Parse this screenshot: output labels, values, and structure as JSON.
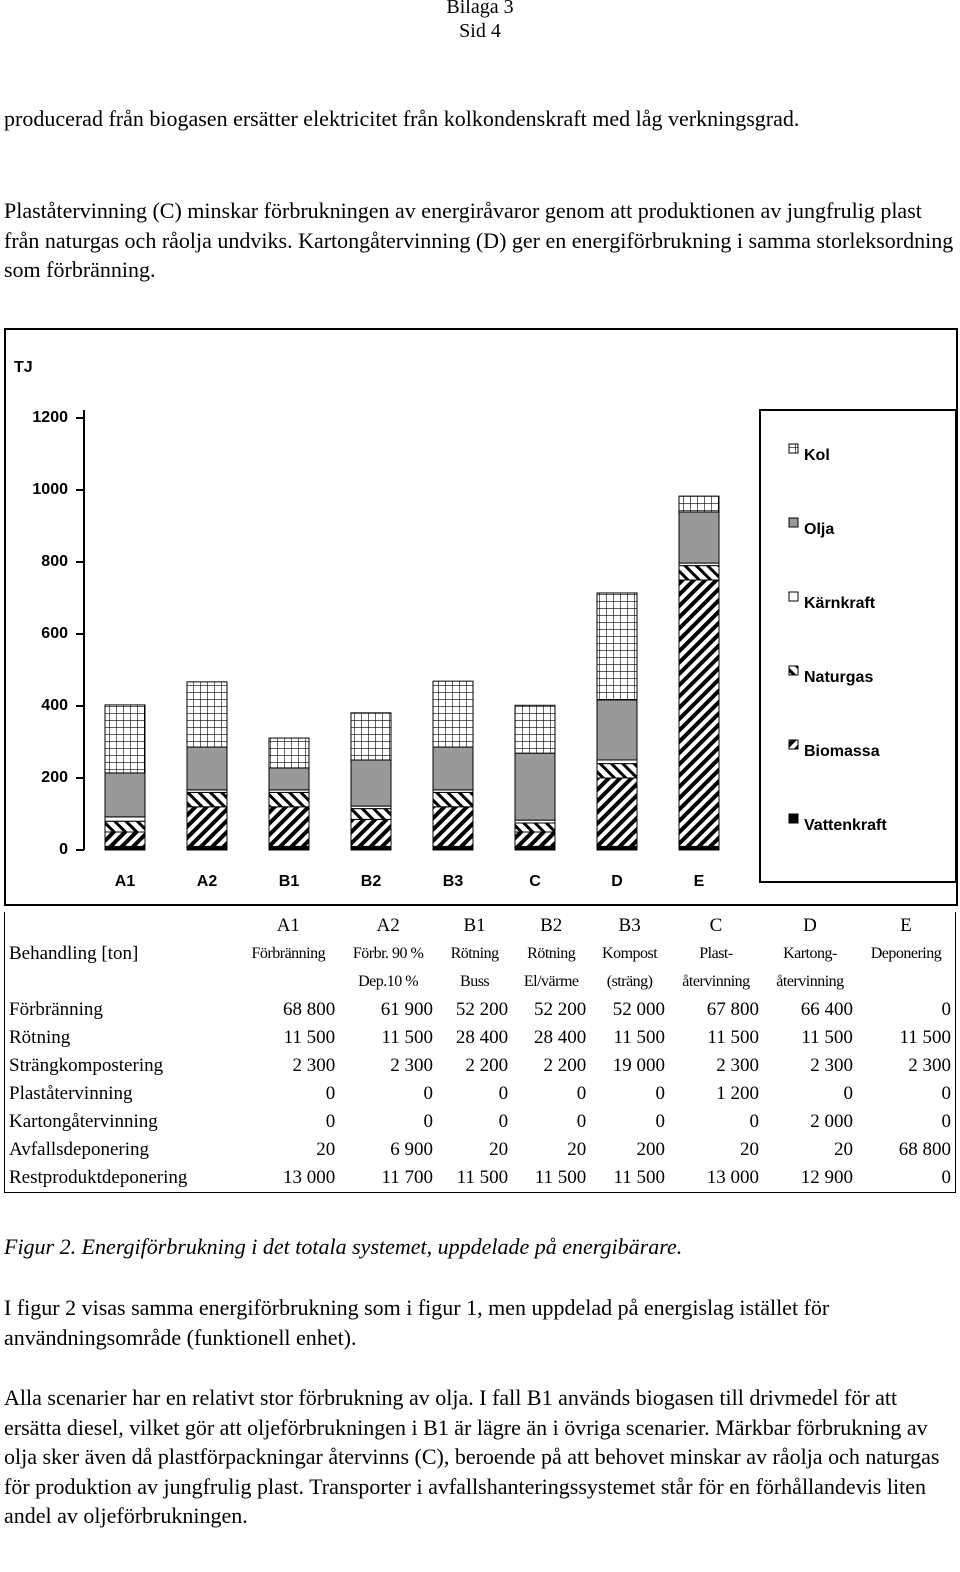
{
  "header": {
    "appendix": "Bilaga 3",
    "page": "Sid 4"
  },
  "intro": [
    "producerad från biogasen ersätter elektricitet från kolkondenskraft med låg verkningsgrad.",
    "Plaståtervinning (C) minskar förbrukningen av energiråvaror genom att produktionen av jungfrulig plast från naturgas och råolja undviks. Kartongåtervinning (D) ger en energiförbrukning i samma storleksordning som förbränning."
  ],
  "chart_data": {
    "type": "stacked-bar",
    "y_label": "TJ",
    "categories": [
      "A1",
      "A2",
      "B1",
      "B2",
      "B3",
      "C",
      "D",
      "E"
    ],
    "series": [
      {
        "name": "Vattenkraft",
        "color": "#000000",
        "pattern": "solid",
        "values": [
          10,
          10,
          10,
          10,
          10,
          10,
          10,
          10
        ]
      },
      {
        "name": "Biomassa",
        "color": "#000000",
        "pattern": "hatch",
        "values": [
          40,
          110,
          110,
          75,
          110,
          40,
          190,
          740
        ]
      },
      {
        "name": "Naturgas",
        "color": "#000000",
        "pattern": "backhatch",
        "values": [
          30,
          40,
          40,
          30,
          40,
          25,
          40,
          40
        ]
      },
      {
        "name": "Kärnkraft",
        "color": "#ffffff",
        "pattern": "solid",
        "values": [
          12,
          7,
          7,
          7,
          7,
          8,
          10,
          7
        ]
      },
      {
        "name": "Olja",
        "color": "#999999",
        "pattern": "solid",
        "values": [
          122,
          119,
          61,
          128,
          119,
          186,
          167,
          142
        ]
      },
      {
        "name": "Kol",
        "color": "#000000",
        "pattern": "grid",
        "values": [
          189,
          181,
          83,
          131,
          183,
          133,
          297,
          44
        ]
      }
    ],
    "ylim": [
      0,
      1200
    ],
    "yticks": [
      0,
      200,
      400,
      600,
      800,
      1000,
      1200
    ],
    "legend": "right"
  },
  "table": {
    "header_label": "Behandling [ton]",
    "columns": [
      {
        "code": "A1",
        "lines": [
          "Förbränning"
        ]
      },
      {
        "code": "A2",
        "lines": [
          "Förbr. 90 %",
          "Dep.10 %"
        ]
      },
      {
        "code": "B1",
        "lines": [
          "Rötning",
          "Buss"
        ]
      },
      {
        "code": "B2",
        "lines": [
          "Rötning",
          "El/värme"
        ]
      },
      {
        "code": "B3",
        "lines": [
          "Kompost",
          "(sträng)"
        ]
      },
      {
        "code": "C",
        "lines": [
          "Plast-",
          "återvinning"
        ]
      },
      {
        "code": "D",
        "lines": [
          "Kartong-",
          "återvinning"
        ]
      },
      {
        "code": "E",
        "lines": [
          "Deponering"
        ]
      }
    ],
    "rows": [
      {
        "label": "Förbränning",
        "cells": [
          "68 800",
          "61 900",
          "52 200",
          "52 200",
          "52 000",
          "67 800",
          "66 400",
          "0"
        ]
      },
      {
        "label": "Rötning",
        "cells": [
          "11 500",
          "11 500",
          "28 400",
          "28 400",
          "11 500",
          "11 500",
          "11 500",
          "11 500"
        ]
      },
      {
        "label": "Strängkompostering",
        "cells": [
          "2 300",
          "2 300",
          "2 200",
          "2 200",
          "19 000",
          "2 300",
          "2 300",
          "2 300"
        ]
      },
      {
        "label": "Plaståtervinning",
        "cells": [
          "0",
          "0",
          "0",
          "0",
          "0",
          "1 200",
          "0",
          "0"
        ]
      },
      {
        "label": "Kartongåtervinning",
        "cells": [
          "0",
          "0",
          "0",
          "0",
          "0",
          "0",
          "2 000",
          "0"
        ]
      },
      {
        "label": "Avfallsdeponering",
        "cells": [
          "20",
          "6 900",
          "20",
          "20",
          "200",
          "20",
          "20",
          "68 800"
        ]
      },
      {
        "label": "Restproduktdeponering",
        "cells": [
          "13 000",
          "11 700",
          "11 500",
          "11 500",
          "11 500",
          "13 000",
          "12 900",
          "0"
        ]
      }
    ]
  },
  "caption": "Figur 2. Energiförbrukning i det totala systemet, uppdelade på energibärare.",
  "body": [
    "I figur 2 visas samma energiförbrukning som i figur 1, men uppdelad på energislag istället för användningsområde (funktionell enhet).",
    "Alla scenarier har en relativt stor förbrukning av olja. I fall B1 används biogasen till drivmedel för att ersätta diesel, vilket gör att oljeförbrukningen i B1 är lägre än i övriga scenarier. Märkbar förbrukning av olja sker även då plastförpackningar återvinns (C), beroende på att behovet minskar av råolja och naturgas för produktion av jungfrulig plast. Transporter i avfallshanteringssystemet står för en förhållandevis liten andel av oljeförbrukningen."
  ]
}
